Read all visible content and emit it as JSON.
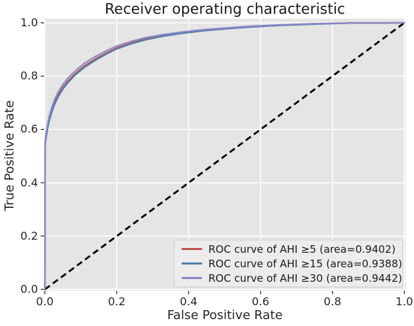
{
  "chart_data": {
    "type": "line",
    "title": "Receiver operating characteristic",
    "xlabel": "False Positive Rate",
    "ylabel": "True Positive Rate",
    "xlim": [
      0.0,
      1.0
    ],
    "ylim": [
      0.0,
      1.05
    ],
    "xticks": [
      0.0,
      0.2,
      0.4,
      0.6,
      0.8,
      1.0
    ],
    "yticks": [
      0.0,
      0.2,
      0.4,
      0.6,
      0.8,
      1.0
    ],
    "xtick_labels": [
      "0.0",
      "0.2",
      "0.4",
      "0.6",
      "0.8",
      "1.0"
    ],
    "ytick_labels": [
      "0.0",
      "0.2",
      "0.4",
      "0.6",
      "0.8",
      "1.0"
    ],
    "grid": true,
    "legend_position": "lower right",
    "colors": {
      "plot_background": "#e5e5e5",
      "grid": "#ffffff",
      "diagonal": "#000000",
      "tick": "#333333",
      "text": "#262626"
    },
    "diagonal_line": {
      "style": "dashed",
      "from": [
        0,
        0
      ],
      "to": [
        1,
        1
      ]
    },
    "series": [
      {
        "name": "ROC curve of AHI ≥5 (area=0.9402)",
        "area": 0.9402,
        "color": "#c25150",
        "points": [
          [
            0,
            0
          ],
          [
            0.001,
            0.545
          ],
          [
            0.002,
            0.563
          ],
          [
            0.004,
            0.582
          ],
          [
            0.008,
            0.613
          ],
          [
            0.013,
            0.643
          ],
          [
            0.019,
            0.67
          ],
          [
            0.027,
            0.7
          ],
          [
            0.037,
            0.728
          ],
          [
            0.05,
            0.757
          ],
          [
            0.065,
            0.783
          ],
          [
            0.085,
            0.81
          ],
          [
            0.11,
            0.838
          ],
          [
            0.14,
            0.864
          ],
          [
            0.17,
            0.886
          ],
          [
            0.2,
            0.906
          ],
          [
            0.24,
            0.924
          ],
          [
            0.28,
            0.939
          ],
          [
            0.33,
            0.952
          ],
          [
            0.38,
            0.962
          ],
          [
            0.44,
            0.971
          ],
          [
            0.5,
            0.978
          ],
          [
            0.57,
            0.985
          ],
          [
            0.65,
            0.991
          ],
          [
            0.75,
            0.996
          ],
          [
            0.85,
            0.999
          ],
          [
            1.0,
            1.0
          ]
        ]
      },
      {
        "name": "ROC curve of AHI ≥15 (area=0.9388)",
        "area": 0.9388,
        "color": "#4e81ad",
        "points": [
          [
            0,
            0
          ],
          [
            0.001,
            0.538
          ],
          [
            0.002,
            0.556
          ],
          [
            0.004,
            0.575
          ],
          [
            0.008,
            0.606
          ],
          [
            0.013,
            0.636
          ],
          [
            0.019,
            0.664
          ],
          [
            0.027,
            0.694
          ],
          [
            0.037,
            0.722
          ],
          [
            0.05,
            0.751
          ],
          [
            0.065,
            0.777
          ],
          [
            0.085,
            0.805
          ],
          [
            0.11,
            0.833
          ],
          [
            0.14,
            0.859
          ],
          [
            0.17,
            0.882
          ],
          [
            0.2,
            0.902
          ],
          [
            0.24,
            0.921
          ],
          [
            0.28,
            0.936
          ],
          [
            0.33,
            0.95
          ],
          [
            0.38,
            0.96
          ],
          [
            0.44,
            0.97
          ],
          [
            0.5,
            0.977
          ],
          [
            0.57,
            0.984
          ],
          [
            0.65,
            0.99
          ],
          [
            0.75,
            0.995
          ],
          [
            0.85,
            0.999
          ],
          [
            1.0,
            1.0
          ]
        ]
      },
      {
        "name": "ROC curve of AHI ≥30 (area=0.9442)",
        "area": 0.9442,
        "color": "#8d86c5",
        "points": [
          [
            0,
            0
          ],
          [
            0.001,
            0.552
          ],
          [
            0.002,
            0.571
          ],
          [
            0.004,
            0.59
          ],
          [
            0.008,
            0.622
          ],
          [
            0.013,
            0.653
          ],
          [
            0.019,
            0.681
          ],
          [
            0.027,
            0.712
          ],
          [
            0.037,
            0.74
          ],
          [
            0.05,
            0.768
          ],
          [
            0.065,
            0.794
          ],
          [
            0.085,
            0.82
          ],
          [
            0.11,
            0.848
          ],
          [
            0.14,
            0.873
          ],
          [
            0.17,
            0.894
          ],
          [
            0.2,
            0.913
          ],
          [
            0.24,
            0.93
          ],
          [
            0.28,
            0.944
          ],
          [
            0.33,
            0.956
          ],
          [
            0.38,
            0.965
          ],
          [
            0.44,
            0.974
          ],
          [
            0.5,
            0.98
          ],
          [
            0.57,
            0.987
          ],
          [
            0.65,
            0.992
          ],
          [
            0.75,
            0.997
          ],
          [
            0.85,
            0.999
          ],
          [
            1.0,
            1.0
          ]
        ]
      }
    ]
  }
}
